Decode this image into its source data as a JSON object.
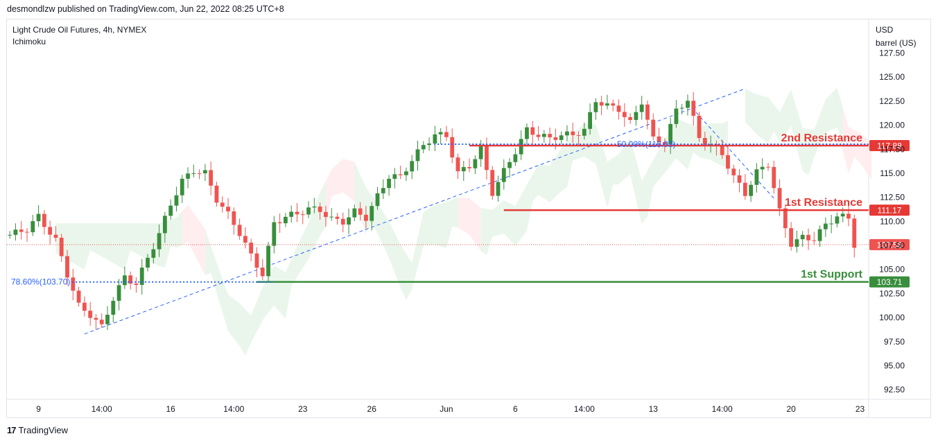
{
  "header": {
    "publisher_line": "desmondlzw published on TradingView.com, Jun 22, 2022 08:25 UTC+8"
  },
  "chart_header": {
    "symbol": "Light Crude Oil Futures, 4h, NYMEX",
    "indicator": "Ichimoku"
  },
  "price_axis_unit": {
    "line1": "USD",
    "line2": "barrel (US)"
  },
  "footer": {
    "brand": "TradingView",
    "logo_glyph": "17"
  },
  "colors": {
    "bull": "#26a69a",
    "bull_dark": "#388e3c",
    "bear": "#ef5350",
    "resistance": "#e53935",
    "support": "#388e3c",
    "fib": "#2962ff",
    "cloud_bull": "#e8f5e9",
    "cloud_bear": "#ffebee",
    "last_price": "#ef5350"
  },
  "chart_data": {
    "type": "candlestick",
    "y_ticks": [
      127.5,
      125.0,
      122.5,
      120.0,
      117.5,
      115.0,
      112.5,
      110.0,
      107.5,
      105.0,
      102.5,
      100.0,
      97.5,
      95.0,
      92.5
    ],
    "y_tick_labels": [
      "127.50",
      "125.00",
      "122.50",
      "120.00",
      "117.50",
      "115.00",
      "112.50",
      "110.00",
      "107.50",
      "105.00",
      "102.50",
      "100.00",
      "97.50",
      "95.00",
      "92.50"
    ],
    "ylim": [
      91.5,
      131.0
    ],
    "x_tick_labels": [
      "9",
      "14:00",
      "16",
      "14:00",
      "23",
      "26",
      "Jun",
      "6",
      "14:00",
      "13",
      "14:00",
      "20",
      "23"
    ],
    "x_tick_index": [
      5,
      16,
      28,
      39,
      51,
      63,
      76,
      88,
      100,
      112,
      124,
      136,
      148
    ],
    "bar_count": 150,
    "close_path": [
      [
        0,
        108.6
      ],
      [
        3,
        109.2
      ],
      [
        5,
        110.5
      ],
      [
        8,
        108.0
      ],
      [
        10,
        104.5
      ],
      [
        12,
        101.2
      ],
      [
        14,
        100.3
      ],
      [
        16,
        99.0
      ],
      [
        18,
        102.0
      ],
      [
        20,
        104.2
      ],
      [
        22,
        103.5
      ],
      [
        24,
        106.2
      ],
      [
        26,
        108.7
      ],
      [
        28,
        111.8
      ],
      [
        30,
        114.2
      ],
      [
        32,
        115.3
      ],
      [
        34,
        115.0
      ],
      [
        36,
        112.3
      ],
      [
        38,
        110.7
      ],
      [
        40,
        108.8
      ],
      [
        42,
        106.4
      ],
      [
        44,
        104.5
      ],
      [
        46,
        109.8
      ],
      [
        48,
        110.5
      ],
      [
        50,
        110.8
      ],
      [
        52,
        111.3
      ],
      [
        54,
        111.2
      ],
      [
        56,
        110.2
      ],
      [
        58,
        110.0
      ],
      [
        60,
        111.0
      ],
      [
        62,
        110.4
      ],
      [
        64,
        112.6
      ],
      [
        66,
        114.7
      ],
      [
        68,
        114.6
      ],
      [
        70,
        116.4
      ],
      [
        72,
        117.9
      ],
      [
        74,
        119.0
      ],
      [
        76,
        118.9
      ],
      [
        78,
        115.0
      ],
      [
        80,
        115.8
      ],
      [
        82,
        117.5
      ],
      [
        84,
        113.0
      ],
      [
        86,
        115.2
      ],
      [
        88,
        117.3
      ],
      [
        90,
        119.5
      ],
      [
        92,
        119.0
      ],
      [
        94,
        118.6
      ],
      [
        96,
        119.0
      ],
      [
        98,
        119.0
      ],
      [
        100,
        119.5
      ],
      [
        102,
        122.6
      ],
      [
        104,
        122.0
      ],
      [
        106,
        121.7
      ],
      [
        108,
        120.2
      ],
      [
        110,
        122.5
      ],
      [
        112,
        118.5
      ],
      [
        114,
        118.3
      ],
      [
        116,
        121.5
      ],
      [
        118,
        122.7
      ],
      [
        120,
        118.6
      ],
      [
        122,
        118.0
      ],
      [
        124,
        117.0
      ],
      [
        126,
        114.6
      ],
      [
        128,
        112.9
      ],
      [
        130,
        115.1
      ],
      [
        132,
        116.0
      ],
      [
        134,
        111.0
      ],
      [
        136,
        107.7
      ],
      [
        138,
        108.3
      ],
      [
        140,
        108.2
      ],
      [
        142,
        109.6
      ],
      [
        144,
        110.6
      ],
      [
        146,
        110.3
      ],
      [
        147,
        107.6
      ]
    ],
    "cloud": {
      "bullish_spans": [
        [
          8,
          30
        ],
        [
          34,
          55
        ],
        [
          60,
          78
        ],
        [
          82,
          125
        ],
        [
          128,
          145
        ]
      ],
      "bearish_spans": [
        [
          30,
          34
        ],
        [
          55,
          60
        ],
        [
          78,
          82
        ],
        [
          145,
          150
        ]
      ]
    },
    "annotations": [
      {
        "name": "2nd Resistance",
        "value": 117.88,
        "label": "117.88",
        "color": "#e53935"
      },
      {
        "name": "1st Resistance",
        "value": 111.17,
        "label": "111.17",
        "color": "#e53935"
      },
      {
        "name": "1st Support",
        "value": 103.71,
        "label": "103.71",
        "color": "#388e3c"
      }
    ],
    "fib_levels": [
      {
        "label": "78.60%(103.70)",
        "value": 103.7
      },
      {
        "label": "50.00%(118.03)",
        "value": 118.03
      }
    ],
    "last_price": {
      "value": 107.58,
      "label": "107.58"
    },
    "trendline": {
      "from": [
        13,
        98.3
      ],
      "to": [
        128,
        123.8
      ]
    },
    "downtrend": {
      "from": [
        118,
        122.3
      ],
      "to": [
        133,
        112.4
      ]
    }
  }
}
